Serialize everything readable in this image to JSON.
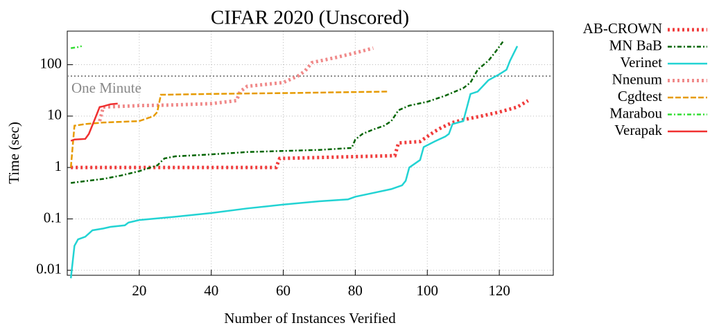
{
  "chart_data": {
    "type": "line",
    "title": "CIFAR 2020 (Unscored)",
    "xlabel": "Number of Instances Verified",
    "ylabel": "Time (sec)",
    "xlim": [
      0,
      135
    ],
    "xticks": [
      20,
      40,
      60,
      80,
      100,
      120
    ],
    "ylim": [
      0.008,
      450
    ],
    "yticks": [
      0.01,
      0.1,
      1,
      10,
      100
    ],
    "log_y": true,
    "grid": true,
    "legend": "outside-right",
    "hline": {
      "value": 60,
      "label": "One Minute",
      "color": "#888888"
    },
    "series": [
      {
        "name": "AB-CROWN",
        "color": "#f03c3c",
        "style": "dotted-thick",
        "x": [
          1,
          58,
          59,
          91,
          92,
          98,
          100,
          102,
          104,
          107,
          110,
          115,
          120,
          125,
          128
        ],
        "values": [
          1.0,
          1.0,
          1.5,
          1.7,
          3.0,
          3.2,
          4.0,
          5.0,
          6.0,
          7.5,
          8.5,
          10,
          12,
          15,
          20
        ]
      },
      {
        "name": "MN BaB",
        "color": "#006400",
        "style": "dashdot",
        "x": [
          1,
          10,
          15,
          20,
          25,
          27,
          30,
          40,
          50,
          60,
          70,
          79,
          80,
          82,
          85,
          88,
          90,
          92,
          95,
          100,
          105,
          110,
          112,
          114,
          117,
          119,
          121
        ],
        "values": [
          0.5,
          0.6,
          0.7,
          0.85,
          1.1,
          1.5,
          1.65,
          1.8,
          2.0,
          2.1,
          2.2,
          2.4,
          3.5,
          4.5,
          5.5,
          6.5,
          8,
          13,
          16,
          19,
          25,
          35,
          45,
          80,
          120,
          180,
          280
        ]
      },
      {
        "name": "Verinet",
        "color": "#22d3d3",
        "style": "solid",
        "x": [
          1,
          2,
          3,
          5,
          7,
          10,
          12,
          16,
          17,
          20,
          30,
          40,
          50,
          60,
          70,
          78,
          80,
          85,
          90,
          93,
          94,
          95,
          98,
          99,
          102,
          105,
          106,
          107,
          110,
          112,
          114,
          117,
          120,
          122,
          123,
          125
        ],
        "values": [
          0.007,
          0.03,
          0.04,
          0.045,
          0.06,
          0.065,
          0.07,
          0.075,
          0.085,
          0.095,
          0.11,
          0.13,
          0.16,
          0.19,
          0.22,
          0.24,
          0.27,
          0.32,
          0.38,
          0.45,
          0.55,
          1.0,
          1.4,
          2.5,
          3.2,
          4.0,
          4.5,
          7,
          8,
          27,
          30,
          50,
          65,
          80,
          120,
          230
        ]
      },
      {
        "name": "Nnenum",
        "color": "#f08a8a",
        "style": "dotted-thick",
        "x": [
          9,
          10,
          20,
          30,
          40,
          47,
          48,
          50,
          60,
          64,
          66,
          68,
          75,
          80,
          85
        ],
        "values": [
          8,
          15,
          16,
          16.5,
          17.5,
          20,
          30,
          38,
          45,
          60,
          75,
          110,
          140,
          170,
          210
        ]
      },
      {
        "name": "Cgdtest",
        "color": "#e69a00",
        "style": "dashed",
        "x": [
          1,
          2,
          5,
          10,
          20,
          24,
          25,
          26,
          40,
          60,
          89
        ],
        "values": [
          1,
          6.5,
          7,
          7.5,
          8,
          10,
          12,
          26,
          27,
          28,
          30
        ]
      },
      {
        "name": "Marabou",
        "color": "#33dd33",
        "style": "dashdot",
        "x": [
          1,
          3,
          4
        ],
        "values": [
          210,
          220,
          230
        ]
      },
      {
        "name": "Verapak",
        "color": "#f03030",
        "style": "solid",
        "x": [
          1,
          2,
          5,
          6,
          8,
          9,
          10,
          12,
          14
        ],
        "values": [
          3.3,
          3.5,
          3.6,
          4.5,
          10,
          15,
          15.5,
          17,
          17.5
        ]
      }
    ]
  }
}
